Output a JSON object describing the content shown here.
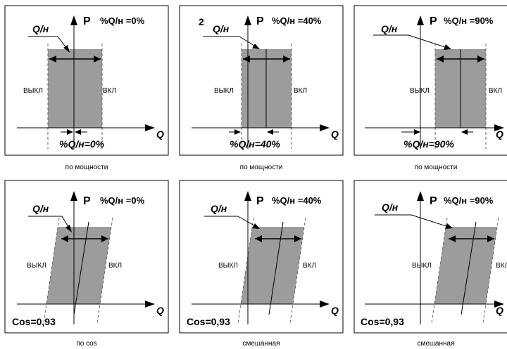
{
  "panels": [
    {
      "pct_label": "%Q/н =0%",
      "q_label": "Q/н",
      "off_label": "ВЫКЛ",
      "on_label": "ВКЛ",
      "bottom_label": "%Q/н=0%",
      "caption": "по мощности",
      "axis_p": "P",
      "axis_q": "Q"
    },
    {
      "pct_label": "%Q/н =40%",
      "q_label": "Q/н",
      "off_label": "ВЫКЛ",
      "on_label": "ВКЛ",
      "bottom_label": "%Q/н=40%",
      "caption": "по мощности",
      "axis_p": "P",
      "axis_q": "Q",
      "marker": "2"
    },
    {
      "pct_label": "%Q/н =90%",
      "q_label": "Q/н",
      "off_label": "ВЫКЛ",
      "on_label": "ВКЛ",
      "bottom_label": "%Q/н=90%",
      "caption": "по мощности",
      "axis_p": "P",
      "axis_q": "Q"
    },
    {
      "pct_label": "%Q/н =0%",
      "q_label": "Q/н",
      "off_label": "ВЫКЛ",
      "on_label": "ВКЛ",
      "bottom_label": "Cos=0,93",
      "caption": "по cos",
      "axis_p": "P",
      "axis_q": "Q"
    },
    {
      "pct_label": "%Q/н =40%",
      "q_label": "Q/н",
      "off_label": "ВЫКЛ",
      "on_label": "ВКЛ",
      "bottom_label": "Cos=0,93",
      "caption": "смешанная",
      "axis_p": "P",
      "axis_q": "Q"
    },
    {
      "pct_label": "%Q/н =90%",
      "q_label": "Q/н",
      "off_label": "ВЫКЛ",
      "on_label": "ВКЛ",
      "bottom_label": "Cos=0,93",
      "caption": "смешанная",
      "axis_p": "P",
      "axis_q": "Q"
    }
  ]
}
